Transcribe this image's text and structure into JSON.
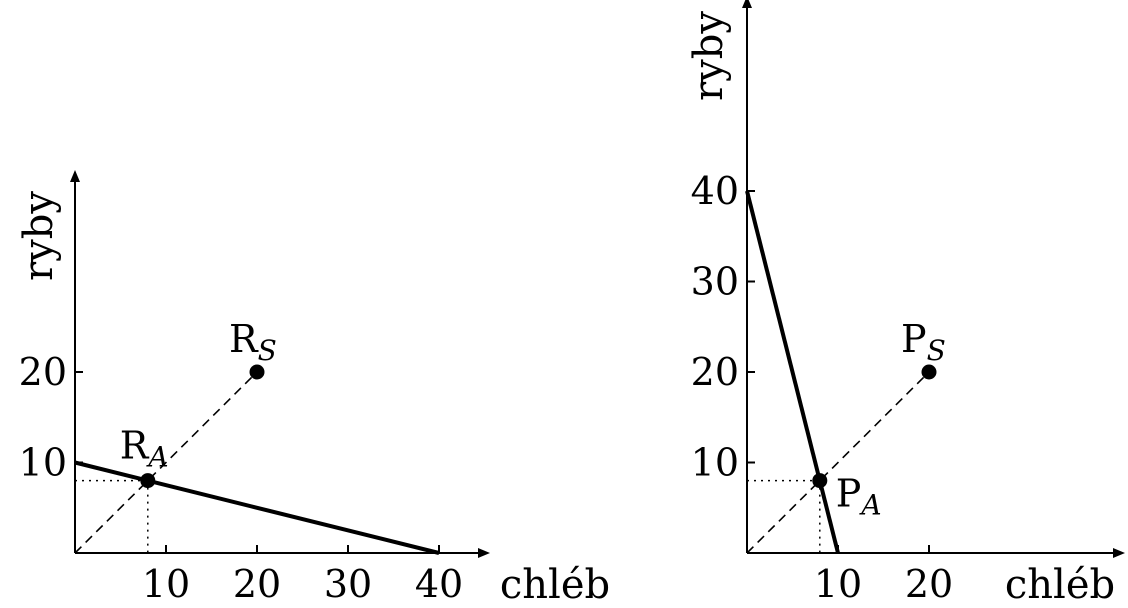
{
  "chart_data": [
    {
      "type": "line",
      "xlabel": "chléb",
      "ylabel": "ryby",
      "xticks": [
        10,
        20,
        30,
        40
      ],
      "yticks": [
        10,
        20
      ],
      "xlim": [
        0,
        60
      ],
      "ylim": [
        0,
        40
      ],
      "series": [
        {
          "style": "solid",
          "x": [
            0,
            40
          ],
          "y": [
            10,
            0
          ]
        },
        {
          "style": "dashed",
          "x": [
            0,
            20
          ],
          "y": [
            0,
            20
          ]
        }
      ],
      "points": [
        {
          "label": "R",
          "sub": "S",
          "x": 20,
          "y": 20
        },
        {
          "label": "R",
          "sub": "A",
          "x": 8,
          "y": 8
        }
      ],
      "guides": {
        "x": 8,
        "y": 8
      }
    },
    {
      "type": "line",
      "xlabel": "chléb",
      "ylabel": "ryby",
      "xticks": [
        10,
        20
      ],
      "yticks": [
        10,
        20,
        30,
        40
      ],
      "xlim": [
        0,
        40
      ],
      "ylim": [
        0,
        60
      ],
      "series": [
        {
          "style": "solid",
          "x": [
            0,
            10
          ],
          "y": [
            40,
            0
          ]
        },
        {
          "style": "dashed",
          "x": [
            0,
            20
          ],
          "y": [
            0,
            20
          ]
        }
      ],
      "points": [
        {
          "label": "P",
          "sub": "S",
          "x": 20,
          "y": 20
        },
        {
          "label": "P",
          "sub": "A",
          "x": 8,
          "y": 8
        }
      ],
      "guides": {
        "x": 8,
        "y": 8
      }
    }
  ]
}
